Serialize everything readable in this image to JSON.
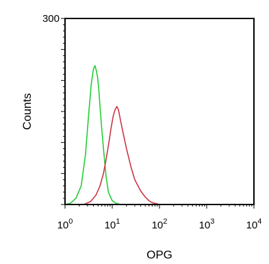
{
  "chart_data": {
    "type": "line",
    "title": "",
    "xlabel": "OPG",
    "ylabel": "Counts",
    "x_scale": "log",
    "xlim": [
      1,
      10000
    ],
    "ylim": [
      0,
      300
    ],
    "grid": false,
    "x_ticks": [
      {
        "value": 1,
        "base": "10",
        "exp": "0"
      },
      {
        "value": 10,
        "base": "10",
        "exp": "1"
      },
      {
        "value": 100,
        "base": "10",
        "exp": "2"
      },
      {
        "value": 1000,
        "base": "10",
        "exp": "3"
      },
      {
        "value": 10000,
        "base": "10",
        "exp": "4"
      }
    ],
    "y_ticks": [
      {
        "value": 300,
        "label": "300"
      }
    ],
    "series": [
      {
        "color": "#22cc33",
        "x": [
          1,
          1.3,
          1.7,
          2.2,
          2.7,
          3.2,
          3.6,
          4.0,
          4.3,
          4.6,
          4.9,
          5.2,
          5.6,
          6.1,
          6.7,
          7.4,
          8.3,
          10,
          12,
          15,
          20
        ],
        "y": [
          0,
          2,
          10,
          30,
          80,
          150,
          195,
          218,
          224,
          216,
          205,
          185,
          150,
          115,
          80,
          45,
          20,
          6,
          2,
          0,
          0
        ]
      },
      {
        "color": "#cc3344",
        "x": [
          2.5,
          3.5,
          4.5,
          5.5,
          6.5,
          7.5,
          8.5,
          9.5,
          10.5,
          11.5,
          12.5,
          13.5,
          15,
          17,
          20,
          25,
          30,
          40,
          50,
          60,
          70,
          80,
          100
        ],
        "y": [
          0,
          5,
          15,
          30,
          50,
          75,
          100,
          125,
          143,
          153,
          158,
          153,
          135,
          115,
          90,
          60,
          40,
          22,
          12,
          6,
          3,
          2,
          0
        ]
      }
    ]
  }
}
